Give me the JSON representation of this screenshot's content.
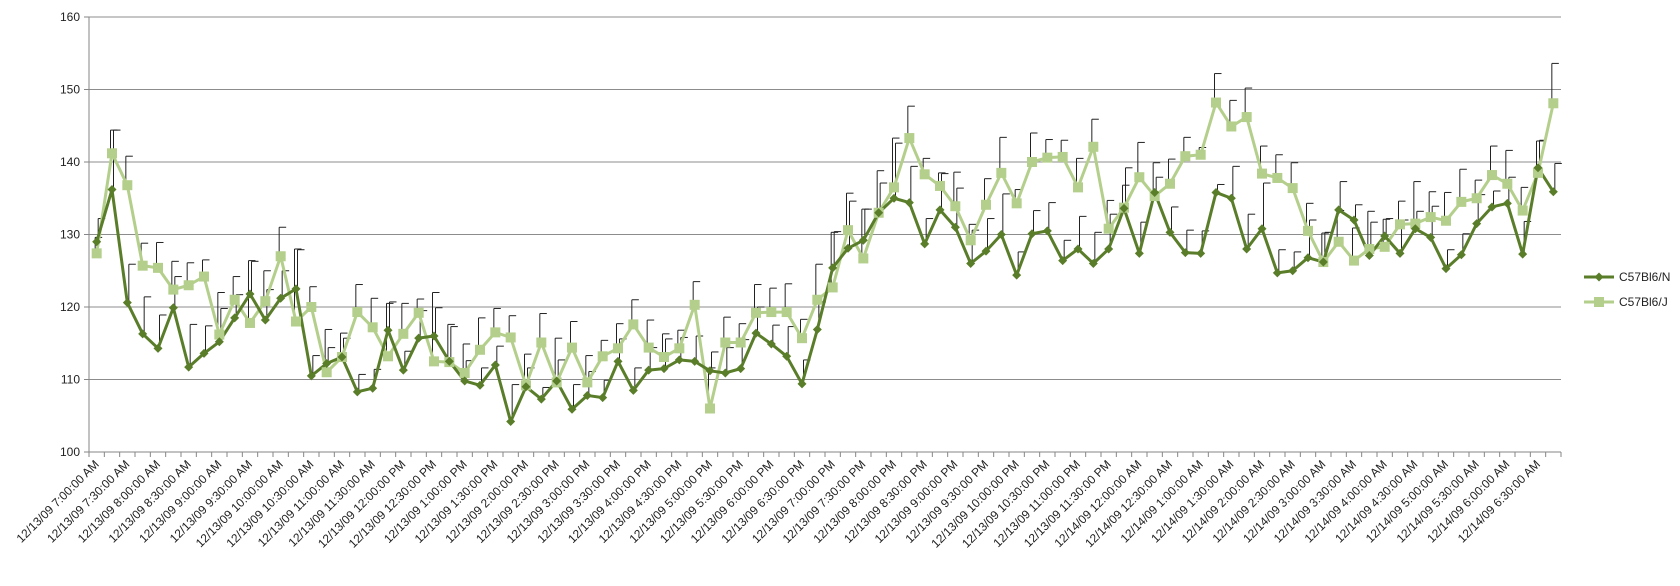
{
  "chart_data": {
    "type": "line",
    "title": "",
    "xlabel": "",
    "ylabel": "",
    "ylim": [
      100,
      160
    ],
    "yticks": [
      100,
      110,
      120,
      130,
      140,
      150,
      160
    ],
    "grid": "horizontal",
    "legend_position": "right",
    "tick_labels": [
      "12/13/09 7:00:00 AM",
      "12/13/09 7:30:00 AM",
      "12/13/09 8:00:00 AM",
      "12/13/09 8:30:00 AM",
      "12/13/09 9:00:00 AM",
      "12/13/09 9:30:00 AM",
      "12/13/09 10:00:00 AM",
      "12/13/09 10:30:00 AM",
      "12/13/09 11:00:00 AM",
      "12/13/09 11:30:00 AM",
      "12/13/09 12:00:00 PM",
      "12/13/09 12:30:00 PM",
      "12/13/09 1:00:00 PM",
      "12/13/09 1:30:00 PM",
      "12/13/09 2:00:00 PM",
      "12/13/09 2:30:00 PM",
      "12/13/09 3:00:00 PM",
      "12/13/09 3:30:00 PM",
      "12/13/09 4:00:00 PM",
      "12/13/09 4:30:00 PM",
      "12/13/09 5:00:00 PM",
      "12/13/09 5:30:00 PM",
      "12/13/09 6:00:00 PM",
      "12/13/09 6:30:00 PM",
      "12/13/09 7:00:00 PM",
      "12/13/09 7:30:00 PM",
      "12/13/09 8:00:00 PM",
      "12/13/09 8:30:00 PM",
      "12/13/09 9:00:00 PM",
      "12/13/09 9:30:00 PM",
      "12/13/09 10:00:00 PM",
      "12/13/09 10:30:00 PM",
      "12/13/09 11:00:00 PM",
      "12/13/09 11:30:00 PM",
      "12/14/09 12:00:00 AM",
      "12/14/09 12:30:00 AM",
      "12/14/09 1:00:00 AM",
      "12/14/09 1:30:00 AM",
      "12/14/09 2:00:00 AM",
      "12/14/09 2:30:00 AM",
      "12/14/09 3:00:00 AM",
      "12/14/09 3:30:00 AM",
      "12/14/09 4:00:00 AM",
      "12/14/09 4:30:00 AM",
      "12/14/09 5:00:00 AM",
      "12/14/09 5:30:00 AM",
      "12/14/09 6:00:00 AM",
      "12/14/09 6:30:00 AM"
    ],
    "tick_every": 2,
    "series": [
      {
        "name": "C57Bl6/N",
        "color": "#5a7d2a",
        "marker": "diamond",
        "values": [
          129.0,
          136.2,
          120.6,
          116.3,
          114.3,
          119.9,
          111.7,
          113.6,
          115.2,
          118.5,
          121.8,
          118.2,
          121.2,
          122.5,
          110.5,
          112.2,
          113.1,
          108.3,
          108.8,
          116.8,
          111.3,
          115.7,
          116.0,
          112.5,
          109.8,
          109.2,
          112.0,
          104.2,
          109.0,
          107.3,
          109.8,
          105.9,
          107.8,
          107.5,
          112.5,
          108.5,
          111.3,
          111.5,
          112.7,
          112.5,
          111.2,
          110.9,
          111.5,
          116.4,
          114.9,
          113.2,
          109.4,
          116.9,
          125.4,
          128.1,
          129.2,
          133.0,
          135.0,
          134.4,
          128.7,
          133.4,
          131.0,
          126.0,
          127.7,
          130.0,
          124.4,
          130.1,
          130.5,
          126.4,
          128.0,
          126.0,
          128.0,
          133.6,
          127.4,
          135.8,
          130.3,
          127.5,
          127.4,
          135.8,
          135.0,
          128.0,
          130.8,
          124.7,
          125.0,
          126.8,
          126.2,
          133.4,
          132.0,
          127.1,
          129.8,
          127.4,
          130.8,
          129.6,
          125.3,
          127.2,
          131.5,
          133.8,
          134.3,
          127.3,
          139.2,
          135.9
        ],
        "errors": [
          3.2,
          8.2,
          5.3,
          5.1,
          4.6,
          4.3,
          5.9,
          3.8,
          4.6,
          3.2,
          4.5,
          4.2,
          3.8,
          5.4,
          2.8,
          2.2,
          2.6,
          2.4,
          2.6,
          3.9,
          2.6,
          3.8,
          3.9,
          4.8,
          2.8,
          2.4,
          2.6,
          5.1,
          2.6,
          1.6,
          2.9,
          3.4,
          3.3,
          2.4,
          3.1,
          3.1,
          3.1,
          4.1,
          3.1,
          3.5,
          2.6,
          3.5,
          4.0,
          3.6,
          2.6,
          4.1,
          3.3,
          3.8,
          5.0,
          6.5,
          4.3,
          4.1,
          7.6,
          5.0,
          3.5,
          5.0,
          5.4,
          4.6,
          4.5,
          5.6,
          3.2,
          3.2,
          3.9,
          2.8,
          4.5,
          4.3,
          4.8,
          5.6,
          4.3,
          2.1,
          3.5,
          3.1,
          3.1,
          1.1,
          4.4,
          4.8,
          6.3,
          3.2,
          2.6,
          5.2,
          4.1,
          3.9,
          2.1,
          4.6,
          2.4,
          4.6,
          2.4,
          4.3,
          2.6,
          2.9,
          4.0,
          2.2,
          3.6,
          4.5,
          3.8,
          3.9
        ]
      },
      {
        "name": "C57Bl6/J",
        "color": "#b4cf8b",
        "marker": "square",
        "values": [
          127.4,
          141.2,
          136.8,
          125.7,
          125.4,
          122.4,
          123.0,
          124.2,
          116.2,
          121.0,
          117.8,
          120.8,
          127.0,
          118.0,
          120.0,
          111.0,
          113.1,
          119.3,
          117.2,
          113.2,
          116.3,
          119.2,
          112.5,
          112.4,
          110.9,
          114.1,
          116.5,
          115.8,
          109.2,
          115.1,
          109.6,
          114.4,
          109.6,
          113.2,
          114.3,
          117.6,
          114.4,
          113.1,
          114.3,
          120.3,
          106.0,
          115.1,
          115.1,
          119.2,
          119.3,
          119.3,
          115.7,
          121.0,
          122.7,
          130.6,
          126.7,
          133.0,
          136.5,
          143.3,
          138.3,
          136.7,
          133.9,
          129.2,
          134.1,
          138.5,
          134.3,
          140.0,
          140.6,
          140.7,
          136.5,
          142.1,
          130.8,
          133.7,
          137.9,
          135.3,
          137.0,
          140.8,
          141.0,
          148.2,
          144.9,
          146.2,
          138.4,
          137.8,
          136.4,
          130.5,
          126.2,
          129.0,
          126.4,
          128.0,
          128.3,
          131.4,
          131.5,
          132.4,
          131.9,
          134.5,
          135.0,
          138.2,
          137.0,
          133.3,
          138.5,
          148.1
        ],
        "errors": [
          2.2,
          3.2,
          4.0,
          3.1,
          3.5,
          3.9,
          3.1,
          2.3,
          5.8,
          3.2,
          8.6,
          4.2,
          4.0,
          10.0,
          2.8,
          5.9,
          3.3,
          3.8,
          4.0,
          7.3,
          4.2,
          1.9,
          9.5,
          5.2,
          4.0,
          4.4,
          3.3,
          3.0,
          4.3,
          4.0,
          6.1,
          3.6,
          3.7,
          2.2,
          3.4,
          3.4,
          3.8,
          3.2,
          2.5,
          3.2,
          5.6,
          3.5,
          2.6,
          3.9,
          3.3,
          3.9,
          2.6,
          4.9,
          7.6,
          5.1,
          6.8,
          5.8,
          6.8,
          4.4,
          2.2,
          1.8,
          4.7,
          2.2,
          3.6,
          4.9,
          1.9,
          4.0,
          2.5,
          2.3,
          4.0,
          3.8,
          3.9,
          3.1,
          4.8,
          4.6,
          3.4,
          2.6,
          1.0,
          4.0,
          3.6,
          4.0,
          3.8,
          3.2,
          3.5,
          3.8,
          4.0,
          4.3,
          4.5,
          5.2,
          3.8,
          3.2,
          5.8,
          3.5,
          3.9,
          4.5,
          2.5,
          4.0,
          4.6,
          3.2,
          4.4,
          5.5
        ]
      }
    ]
  }
}
